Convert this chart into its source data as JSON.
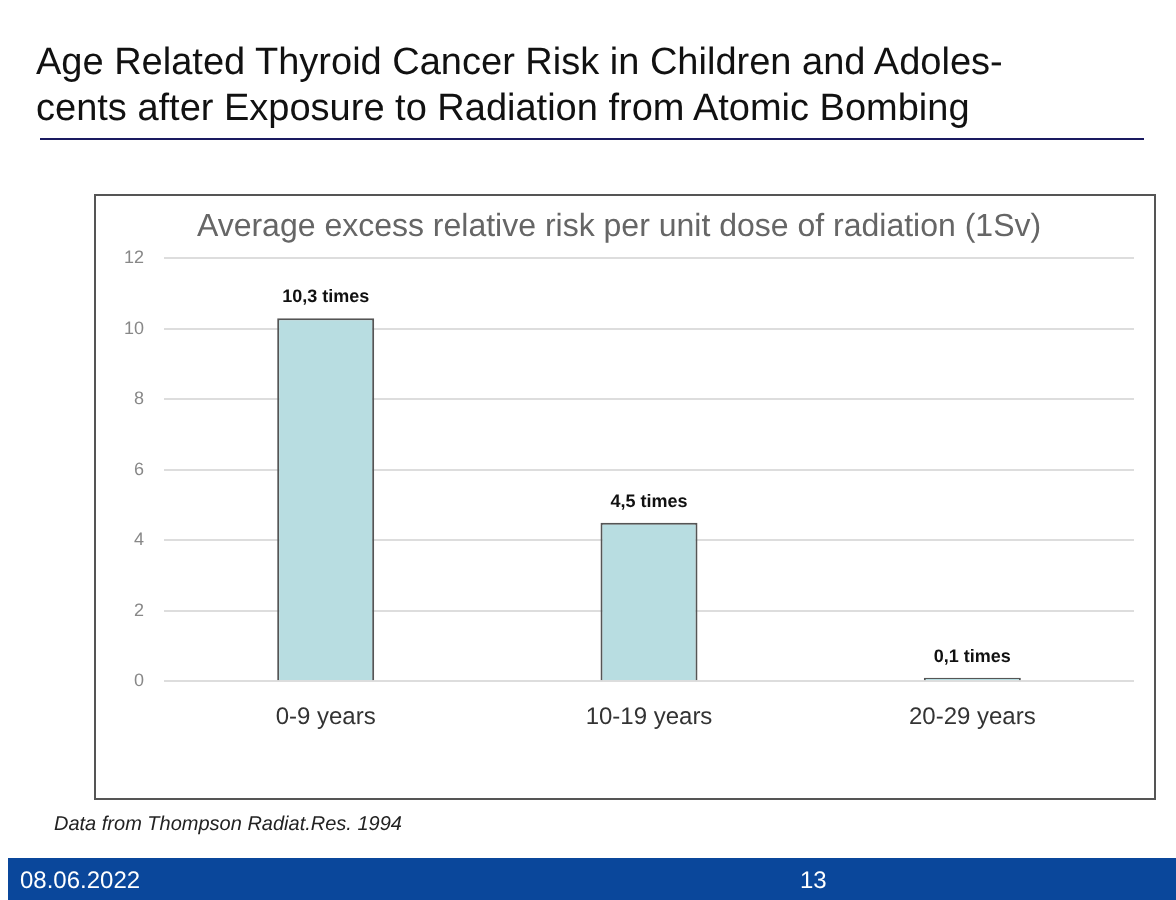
{
  "chart_data": {
    "type": "bar",
    "title": "Age Related Thyroid Cancer Risk in Children and Adoles-\ncents after Exposure to Radiation from Atomic Bombing",
    "subtitle": "Average excess relative risk per unit dose of radiation (1Sv)",
    "categories": [
      "0-9 years",
      "10-19 years",
      "20-29 years"
    ],
    "values": [
      10.3,
      4.5,
      0.1
    ],
    "value_labels": [
      "10,3 times",
      "4,5 times",
      "0,1 times"
    ],
    "color": "#b8dde1",
    "ylim": [
      0,
      12
    ],
    "yticks": [
      0,
      2,
      4,
      6,
      8,
      10,
      12
    ],
    "grid": "y",
    "legend": false,
    "annotations": [
      "Data from Thompson Radiat.Res. 1994",
      "08.06.2022",
      "13"
    ]
  }
}
